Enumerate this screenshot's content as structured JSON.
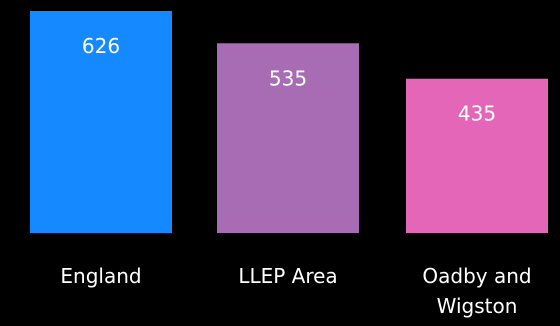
{
  "chart_data": {
    "type": "bar",
    "categories": [
      "England",
      "LLEP Area",
      "Oadby and Wigston"
    ],
    "category_lines": [
      [
        "England"
      ],
      [
        "LLEP Area"
      ],
      [
        "Oadby and",
        "Wigston"
      ]
    ],
    "values": [
      626,
      535,
      435
    ],
    "data_labels": [
      "626",
      "535",
      "435"
    ],
    "colors": [
      "#1589ff",
      "#a86cb4",
      "#e466b9"
    ],
    "title": "",
    "xlabel": "",
    "ylabel": "",
    "ylim": [
      0,
      626
    ],
    "grid": false,
    "legend": "none"
  }
}
